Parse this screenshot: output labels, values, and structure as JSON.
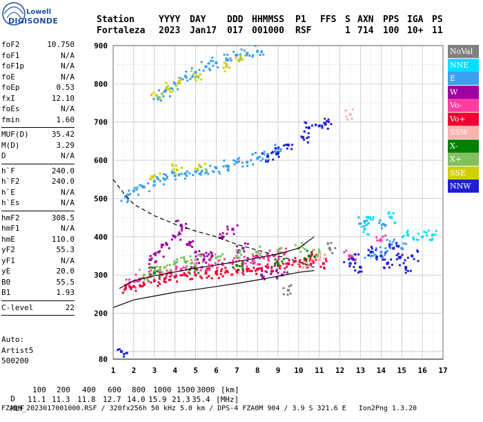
{
  "logo": {
    "line1": "Lowell",
    "line2": "DIGISONDE"
  },
  "header": {
    "columns": [
      "Station",
      "YYYY",
      "DAY",
      "DDD",
      "HHMMSS",
      "P1",
      "FFS",
      "S",
      "AXN",
      "PPS",
      "IGA",
      "PS"
    ],
    "values": [
      "Fortaleza",
      "2023",
      "Jan17",
      "017",
      "001000",
      "RSF",
      "",
      "1",
      "714",
      "100",
      "10+",
      "11"
    ]
  },
  "params_groups": [
    [
      [
        "foF2",
        "10.750"
      ],
      [
        "foF1",
        "N/A"
      ],
      [
        "foF1p",
        "N/A"
      ],
      [
        "foE",
        "N/A"
      ],
      [
        "foEp",
        "0.53"
      ],
      [
        "fxI",
        "12.10"
      ],
      [
        "foEs",
        "N/A"
      ],
      [
        "fmin",
        "1.60"
      ]
    ],
    [
      [
        "MUF(D)",
        "35.42"
      ],
      [
        "M(D)",
        "3.29"
      ],
      [
        "D",
        "N/A"
      ]
    ],
    [
      [
        "h`F",
        "240.0"
      ],
      [
        "h`F2",
        "240.0"
      ],
      [
        "h`E",
        "N/A"
      ],
      [
        "h`Es",
        "N/A"
      ]
    ],
    [
      [
        "hmF2",
        "308.5"
      ],
      [
        "hmF1",
        "N/A"
      ],
      [
        "hmE",
        "110.0"
      ],
      [
        "yF2",
        "55.3"
      ],
      [
        "yF1",
        "N/A"
      ],
      [
        "yE",
        "20.0"
      ],
      [
        "B0",
        "55.5"
      ],
      [
        "B1",
        "1.93"
      ]
    ],
    [
      [
        "C-level",
        "22"
      ]
    ]
  ],
  "auto": {
    "line1": "Auto:",
    "line2": "Artist5",
    "line3": "500200"
  },
  "legend": [
    {
      "label": "NoVal",
      "color": "#808080"
    },
    {
      "label": "NNE",
      "color": "#00e0ff"
    },
    {
      "label": "E",
      "color": "#3ca0f0"
    },
    {
      "label": "W",
      "color": "#a000a0"
    },
    {
      "label": "Vo-",
      "color": "#ff3ca0"
    },
    {
      "label": "Vo+",
      "color": "#f00030"
    },
    {
      "label": "SSW",
      "color": "#ffb0b0"
    },
    {
      "label": "X-",
      "color": "#008000"
    },
    {
      "label": "X+",
      "color": "#80c060"
    },
    {
      "label": "SSE",
      "color": "#d0d000"
    },
    {
      "label": "NNW",
      "color": "#2020d0"
    }
  ],
  "footer": {
    "d_label": "D",
    "d_values": [
      "100",
      "200",
      "400",
      "600",
      "800",
      "1000",
      "1500",
      "3000",
      "[km]"
    ],
    "muf_label": "MUF",
    "muf_values": [
      "11.1",
      "11.3",
      "11.8",
      "12.7",
      "14.0",
      "15.9",
      "21.3",
      "35.4",
      "[MHz]"
    ],
    "file_line": "FZA0M_2023017001000.RSF / 320fx256h 50 kHz 5.0 km / DPS-4 FZA0M 904 / 3.9 S 321.6 E   Ion2Png 1.3.20"
  },
  "chart_data": {
    "type": "scatter",
    "x_ticks": [
      "1",
      "2",
      "3",
      "4",
      "5",
      "6",
      "7",
      "8",
      "9",
      "10",
      "11",
      "12",
      "13",
      "14",
      "15",
      "16",
      "17"
    ],
    "y_ticks": [
      "80",
      "200",
      "300",
      "400",
      "500",
      "600",
      "700",
      "800",
      "900"
    ],
    "x_range": [
      1,
      17
    ],
    "y_range": [
      80,
      900
    ],
    "grid": true,
    "series": [
      {
        "name": "E",
        "color": "#3ca0f0",
        "points": [
          [
            1.6,
            505
          ],
          [
            2.0,
            520
          ],
          [
            2.5,
            530
          ],
          [
            3.0,
            545
          ],
          [
            3.5,
            550
          ],
          [
            4.0,
            560
          ],
          [
            4.5,
            565
          ],
          [
            5.0,
            570
          ],
          [
            5.5,
            575
          ],
          [
            6.0,
            580
          ],
          [
            6.5,
            585
          ],
          [
            7.0,
            595
          ],
          [
            7.5,
            595
          ],
          [
            8.0,
            605
          ],
          [
            8.5,
            615
          ],
          [
            9.0,
            630
          ],
          [
            3.2,
            760
          ],
          [
            3.5,
            780
          ],
          [
            4.0,
            800
          ],
          [
            4.5,
            820
          ],
          [
            5.0,
            830
          ],
          [
            5.5,
            845
          ],
          [
            6.0,
            855
          ],
          [
            6.5,
            865
          ],
          [
            7.0,
            875
          ],
          [
            7.5,
            880
          ],
          [
            8.0,
            885
          ],
          [
            13.5,
            350
          ],
          [
            14.0,
            360
          ],
          [
            14.5,
            380
          ],
          [
            15.0,
            370
          ],
          [
            13.2,
            440
          ],
          [
            14.2,
            430
          ]
        ]
      },
      {
        "name": "NNW",
        "color": "#2020d0",
        "points": [
          [
            8.5,
            610
          ],
          [
            9.0,
            620
          ],
          [
            9.5,
            640
          ],
          [
            10.2,
            660
          ],
          [
            10.5,
            685
          ],
          [
            11.0,
            690
          ],
          [
            11.3,
            695
          ],
          [
            12.5,
            330
          ],
          [
            12.7,
            340
          ],
          [
            13.0,
            320
          ],
          [
            13.5,
            360
          ],
          [
            14.0,
            350
          ],
          [
            14.3,
            330
          ],
          [
            14.6,
            370
          ],
          [
            14.9,
            345
          ],
          [
            15.2,
            320
          ],
          [
            15.5,
            350
          ],
          [
            1.4,
            100
          ]
        ]
      },
      {
        "name": "W",
        "color": "#a000a0",
        "points": [
          [
            2.8,
            340
          ],
          [
            3.2,
            360
          ],
          [
            3.6,
            380
          ],
          [
            4.0,
            400
          ],
          [
            4.3,
            430
          ],
          [
            4.6,
            380
          ],
          [
            5.0,
            360
          ],
          [
            5.4,
            340
          ],
          [
            5.8,
            350
          ],
          [
            6.3,
            400
          ],
          [
            6.8,
            420
          ],
          [
            7.3,
            370
          ],
          [
            7.8,
            340
          ],
          [
            8.2,
            300
          ],
          [
            8.7,
            310
          ],
          [
            9.2,
            300
          ]
        ]
      },
      {
        "name": "Vo+",
        "color": "#f00030",
        "points": [
          [
            1.6,
            265
          ],
          [
            2.0,
            270
          ],
          [
            2.5,
            275
          ],
          [
            3.0,
            285
          ],
          [
            3.5,
            290
          ],
          [
            4.0,
            295
          ],
          [
            4.5,
            300
          ],
          [
            5.0,
            300
          ],
          [
            5.5,
            305
          ],
          [
            6.0,
            305
          ],
          [
            6.5,
            310
          ],
          [
            7.0,
            310
          ],
          [
            7.5,
            315
          ],
          [
            8.0,
            315
          ],
          [
            8.5,
            320
          ],
          [
            9.0,
            325
          ],
          [
            9.5,
            330
          ],
          [
            10.0,
            330
          ],
          [
            10.3,
            340
          ],
          [
            10.6,
            330
          ],
          [
            10.9,
            350
          ],
          [
            11.2,
            330
          ]
        ]
      },
      {
        "name": "Vo-",
        "color": "#ff3ca0",
        "points": [
          [
            1.8,
            280
          ],
          [
            2.3,
            290
          ],
          [
            2.8,
            300
          ],
          [
            3.3,
            305
          ],
          [
            3.8,
            310
          ],
          [
            4.3,
            315
          ],
          [
            4.8,
            320
          ],
          [
            5.3,
            320
          ],
          [
            5.8,
            325
          ],
          [
            6.3,
            330
          ],
          [
            6.8,
            330
          ],
          [
            7.3,
            335
          ],
          [
            7.8,
            340
          ],
          [
            8.3,
            345
          ],
          [
            8.8,
            350
          ],
          [
            9.3,
            355
          ],
          [
            12.5,
            350
          ],
          [
            14.0,
            390
          ]
        ]
      },
      {
        "name": "X+",
        "color": "#80c060",
        "points": [
          [
            2.5,
            300
          ],
          [
            3.0,
            310
          ],
          [
            3.5,
            320
          ],
          [
            4.0,
            330
          ],
          [
            4.5,
            335
          ],
          [
            5.0,
            340
          ],
          [
            6.0,
            345
          ],
          [
            7.0,
            350
          ],
          [
            8.0,
            360
          ],
          [
            9.0,
            365
          ],
          [
            10.0,
            370
          ],
          [
            11.0,
            360
          ]
        ]
      },
      {
        "name": "SSE",
        "color": "#d0d000",
        "points": [
          [
            3.1,
            770
          ],
          [
            3.6,
            790
          ],
          [
            4.2,
            805
          ],
          [
            5.1,
            820
          ],
          [
            6.5,
            845
          ],
          [
            7.1,
            860
          ],
          [
            3.0,
            560
          ],
          [
            4.1,
            575
          ],
          [
            5.2,
            585
          ]
        ]
      },
      {
        "name": "SSW",
        "color": "#ffb0b0",
        "points": [
          [
            10.2,
            320
          ],
          [
            10.6,
            335
          ],
          [
            11.0,
            340
          ],
          [
            12.5,
            720
          ]
        ]
      },
      {
        "name": "NNE",
        "color": "#00e0ff",
        "points": [
          [
            13.2,
            420
          ],
          [
            13.4,
            450
          ],
          [
            14.5,
            450
          ],
          [
            15.3,
            405
          ],
          [
            16.0,
            400
          ],
          [
            16.5,
            405
          ]
        ]
      },
      {
        "name": "X-",
        "color": "#008000",
        "points": [
          [
            3.0,
            305
          ],
          [
            5.0,
            315
          ],
          [
            7.0,
            325
          ],
          [
            9.0,
            330
          ],
          [
            10.5,
            350
          ]
        ]
      },
      {
        "name": "NoVal",
        "color": "#808080",
        "points": [
          [
            9.5,
            260
          ],
          [
            11.5,
            370
          ]
        ]
      }
    ],
    "profile_lines": [
      {
        "style": "solid",
        "points": [
          [
            1.0,
            215
          ],
          [
            2.0,
            235
          ],
          [
            3.0,
            245
          ],
          [
            4.0,
            255
          ],
          [
            5.0,
            262
          ],
          [
            6.0,
            270
          ],
          [
            7.0,
            278
          ],
          [
            8.0,
            287
          ],
          [
            9.0,
            297
          ],
          [
            10.0,
            307
          ],
          [
            10.75,
            312
          ]
        ]
      },
      {
        "style": "solid",
        "points": [
          [
            1.3,
            265
          ],
          [
            2.0,
            285
          ],
          [
            3.0,
            298
          ],
          [
            4.0,
            308
          ],
          [
            5.0,
            318
          ],
          [
            6.0,
            326
          ],
          [
            7.0,
            335
          ],
          [
            8.0,
            345
          ],
          [
            9.0,
            355
          ],
          [
            10.0,
            370
          ],
          [
            10.75,
            400
          ]
        ]
      },
      {
        "style": "dashed",
        "points": [
          [
            1.0,
            550
          ],
          [
            1.5,
            515
          ],
          [
            2.0,
            485
          ],
          [
            3.0,
            455
          ],
          [
            4.0,
            433
          ],
          [
            5.0,
            415
          ],
          [
            6.0,
            400
          ],
          [
            7.0,
            380
          ],
          [
            8.0,
            365
          ],
          [
            9.0,
            350
          ],
          [
            10.0,
            335
          ],
          [
            10.75,
            320
          ]
        ]
      }
    ]
  }
}
